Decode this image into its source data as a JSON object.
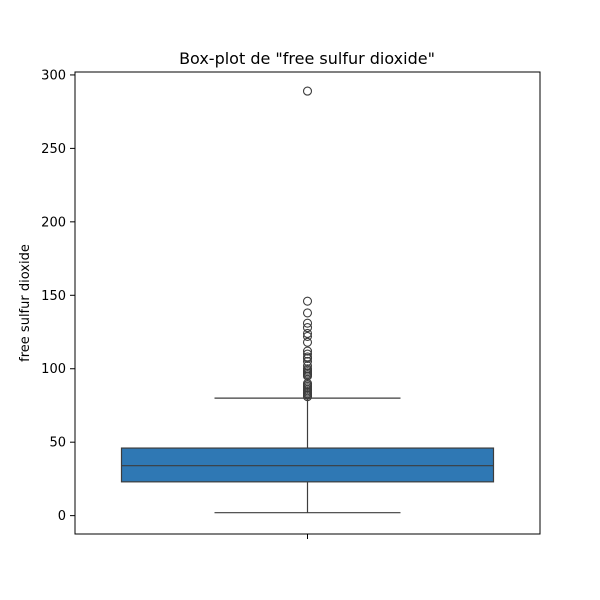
{
  "chart_data": {
    "type": "box",
    "title": "Box-plot de \"free sulfur dioxide\"",
    "xlabel": "",
    "ylabel": "free sulfur dioxide",
    "ylim": [
      -12.5,
      302
    ],
    "yticks": [
      0,
      50,
      100,
      150,
      200,
      250,
      300
    ],
    "ytick_labels": [
      "0",
      "50",
      "100",
      "150",
      "200",
      "250",
      "300"
    ],
    "grid": false,
    "legend": "none",
    "box": {
      "whisker_low": 2,
      "q1": 23,
      "median": 34,
      "q3": 46,
      "whisker_high": 80,
      "color": "#2f78b4",
      "edge_color": "#3d3d3d"
    },
    "outliers": [
      81,
      82,
      83,
      84,
      85,
      86,
      87,
      88,
      89,
      90,
      95,
      96,
      97,
      98,
      99,
      100,
      102,
      105,
      107,
      108,
      110,
      112,
      118,
      122,
      124,
      128,
      131,
      138,
      146,
      289
    ]
  }
}
